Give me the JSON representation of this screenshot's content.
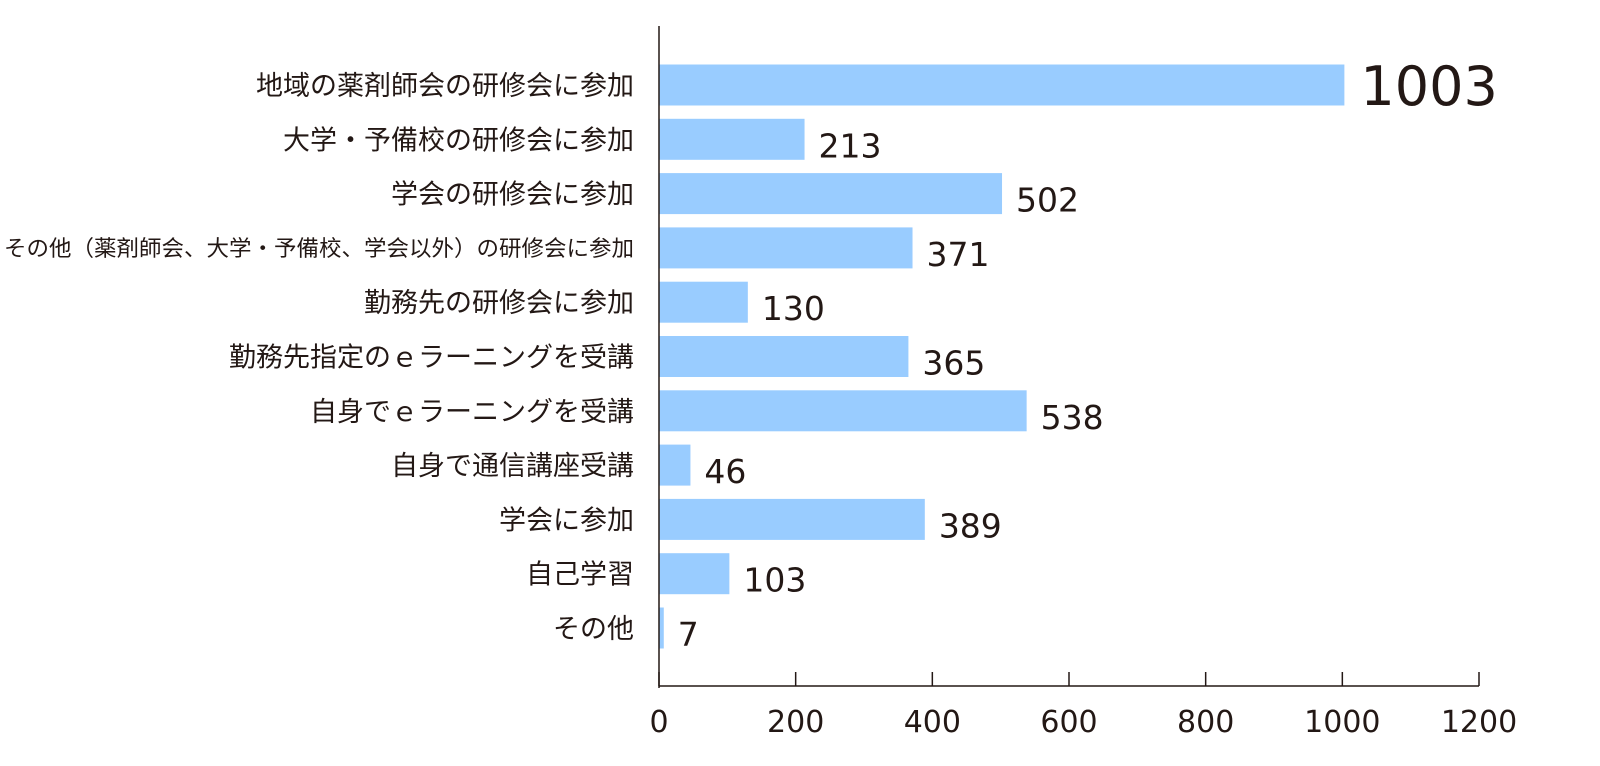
{
  "chart_data": {
    "type": "bar",
    "orientation": "horizontal",
    "title": "",
    "xlabel": "",
    "ylabel": "",
    "xlim": [
      0,
      1200
    ],
    "x_ticks": [
      0,
      200,
      400,
      600,
      800,
      1000,
      1200
    ],
    "x_tick_labels": [
      "0",
      "200",
      "400",
      "600",
      "800",
      "1000",
      "1200"
    ],
    "grid": false,
    "legend": "none",
    "bar_color": "#99ccff",
    "text_color": "#231815",
    "categories": [
      "地域の薬剤師会の研修会に参加",
      "大学・予備校の研修会に参加",
      "学会の研修会に参加",
      "その他（薬剤師会、大学・予備校、学会以外）の研修会に参加",
      "勤務先の研修会に参加",
      "勤務先指定のｅラーニングを受講",
      "自身でｅラーニングを受講",
      "自身で通信講座受講",
      "学会に参加",
      "自己学習",
      "その他"
    ],
    "values": [
      1003,
      213,
      502,
      371,
      130,
      365,
      538,
      46,
      389,
      103,
      7
    ],
    "value_labels": [
      "1003",
      "213",
      "502",
      "371",
      "130",
      "365",
      "538",
      "46",
      "389",
      "103",
      "7"
    ]
  }
}
